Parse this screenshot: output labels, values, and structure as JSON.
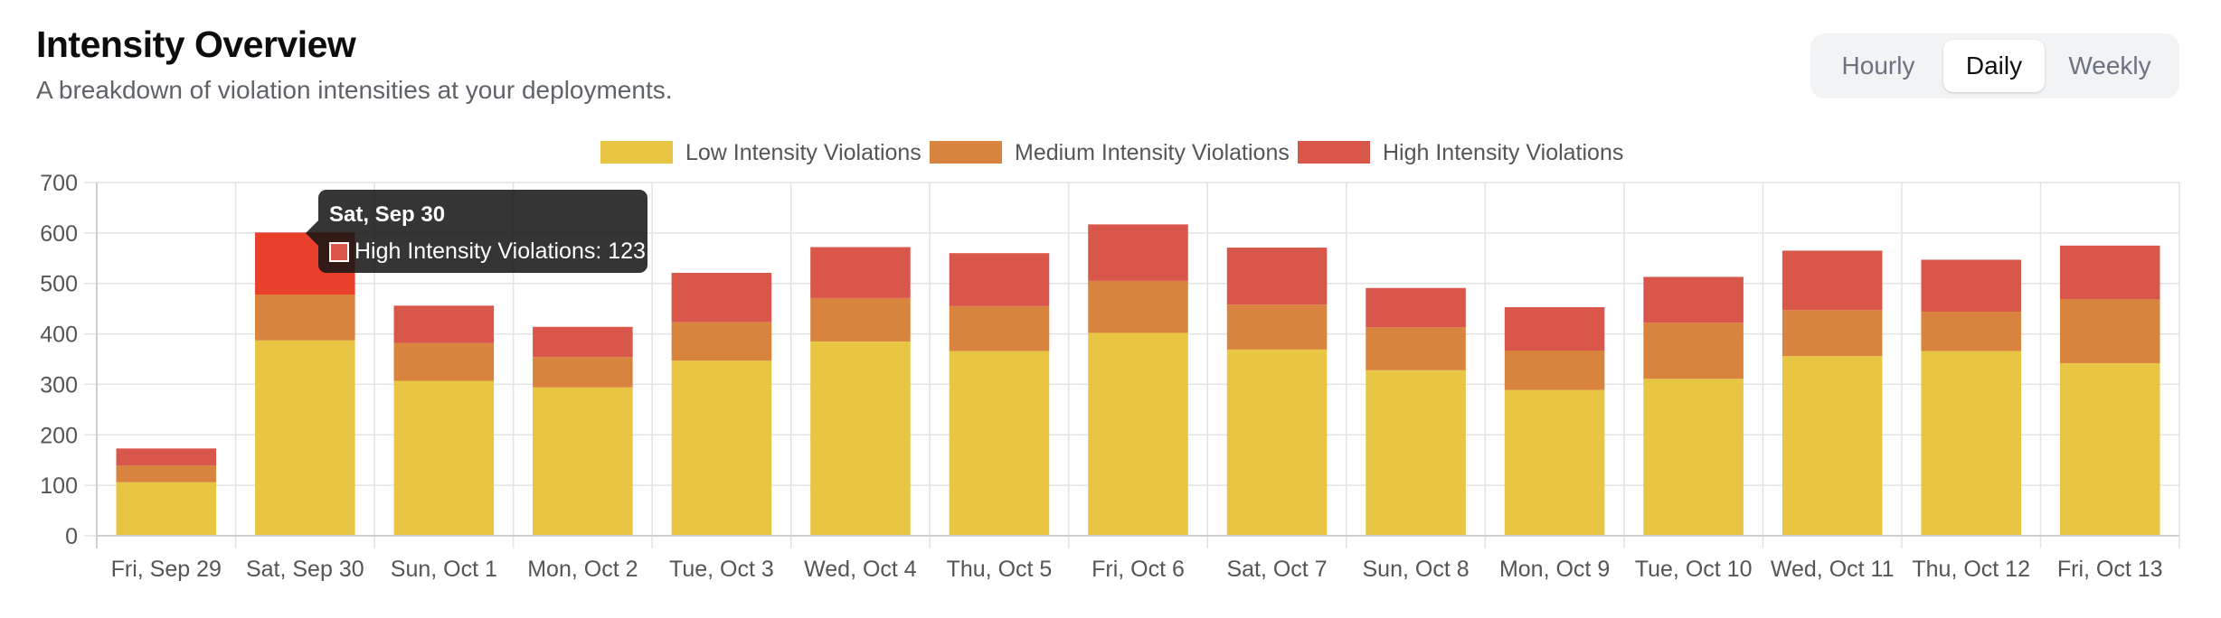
{
  "header": {
    "title": "Intensity Overview",
    "subtitle": "A breakdown of violation intensities at your deployments."
  },
  "range_toggle": {
    "options": [
      "Hourly",
      "Daily",
      "Weekly"
    ],
    "selected": "Daily"
  },
  "tooltip": {
    "title": "Sat, Sep 30",
    "label": "High Intensity Violations: 123"
  },
  "chart_data": {
    "type": "bar",
    "stacked": true,
    "categories": [
      "Fri, Sep 29",
      "Sat, Sep 30",
      "Sun, Oct 1",
      "Mon, Oct 2",
      "Tue, Oct 3",
      "Wed, Oct 4",
      "Thu, Oct 5",
      "Fri, Oct 6",
      "Sat, Oct 7",
      "Sun, Oct 8",
      "Mon, Oct 9",
      "Tue, Oct 10",
      "Wed, Oct 11",
      "Thu, Oct 12",
      "Fri, Oct 13"
    ],
    "series": [
      {
        "name": "Low Intensity Violations",
        "color": "#e8c644",
        "values": [
          106,
          387,
          307,
          294,
          347,
          385,
          366,
          402,
          369,
          328,
          289,
          311,
          356,
          366,
          342
        ]
      },
      {
        "name": "Medium Intensity Violations",
        "color": "#d9843e",
        "values": [
          33,
          91,
          75,
          60,
          76,
          86,
          89,
          103,
          89,
          85,
          78,
          111,
          91,
          78,
          127
        ]
      },
      {
        "name": "High Intensity Violations",
        "color": "#d9574a",
        "values": [
          34,
          123,
          74,
          60,
          98,
          101,
          105,
          112,
          113,
          78,
          86,
          91,
          118,
          103,
          106
        ]
      }
    ],
    "hover": {
      "category_index": 1,
      "series_index": 2,
      "color": "#e8402b"
    },
    "ylim": [
      0,
      700
    ],
    "yticks": [
      0,
      100,
      200,
      300,
      400,
      500,
      600,
      700
    ],
    "grid": true,
    "legend": "top-center",
    "xlabel": "",
    "ylabel": ""
  }
}
